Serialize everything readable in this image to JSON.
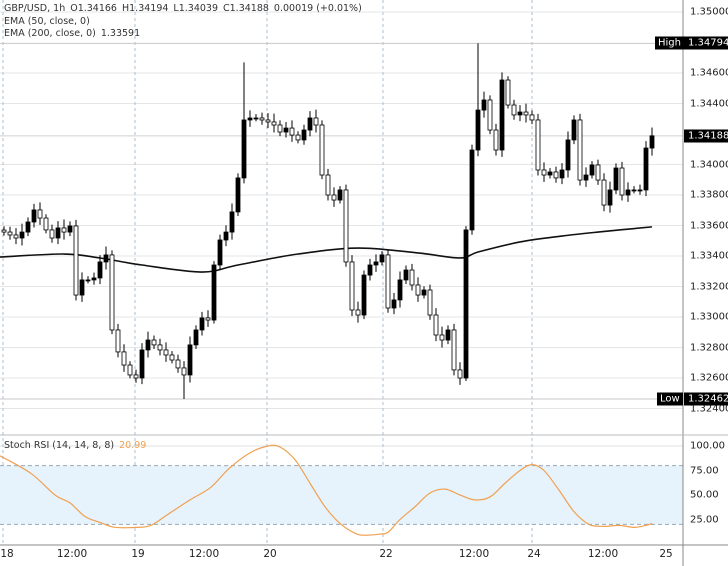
{
  "legend": {
    "symbol": "GBP/USD, 1h",
    "open": "O1.34166",
    "high": "H1.34194",
    "low": "L1.34039",
    "close": "C1.34188",
    "change": "0.00019 (+0.01%)",
    "ema50_label": "EMA (50, close, 0)",
    "ema200_label": "EMA (200, close, 0)",
    "ema200_value": "1.33591"
  },
  "stoch": {
    "label": "Stoch RSI (14, 14, 8, 8)",
    "value": "20.99",
    "color": "#f0a050",
    "band_color": "#e6f3fc"
  },
  "price_scale": {
    "ticks": [
      "1.35000",
      "1.34600",
      "1.34400",
      "1.34000",
      "1.33800",
      "1.33600",
      "1.33400",
      "1.33200",
      "1.33000",
      "1.32800",
      "1.32600",
      "1.32400"
    ],
    "high_tag": {
      "label": "High",
      "value": "1.34794"
    },
    "low_tag": {
      "label": "Low",
      "value": "1.32462"
    },
    "last_price": "1.34188"
  },
  "stoch_scale": {
    "ticks": [
      "100.00",
      "75.00",
      "50.00",
      "25.00"
    ]
  },
  "time_axis": {
    "labels": [
      "18",
      "12:00",
      "19",
      "12:00",
      "20",
      "22",
      "12:00",
      "24",
      "12:00",
      "25"
    ]
  },
  "chart_data": {
    "type": "candlestick",
    "symbol": "GBP/USD",
    "timeframe": "1h",
    "ylim": [
      1.3232,
      1.3508
    ],
    "up_color": "#000000",
    "down_color": "#ffffff",
    "period_high": 1.34794,
    "period_low": 1.32462,
    "close": [
      1.33557,
      1.33538,
      1.33518,
      1.33557,
      1.33623,
      1.33702,
      1.33649,
      1.33571,
      1.33518,
      1.33584,
      1.33557,
      1.33597,
      1.33144,
      1.33243,
      1.33243,
      1.33256,
      1.33361,
      1.33407,
      1.32915,
      1.32771,
      1.32685,
      1.3262,
      1.326,
      1.32784,
      1.32849,
      1.32817,
      1.32784,
      1.32751,
      1.32718,
      1.32666,
      1.3262,
      1.32817,
      1.32915,
      1.32994,
      1.3298,
      1.33341,
      1.33505,
      1.33557,
      1.33689,
      1.33912,
      1.34292,
      1.34305,
      1.34305,
      1.34292,
      1.34279,
      1.34259,
      1.34213,
      1.34239,
      1.34193,
      1.34161,
      1.34226,
      1.34305,
      1.34259,
      1.33931,
      1.338,
      1.33767,
      1.33833,
      1.33361,
      1.33046,
      1.33013,
      1.33275,
      1.33341,
      1.33361,
      1.33407,
      1.33059,
      1.33112,
      1.33243,
      1.33308,
      1.3321,
      1.33144,
      1.33177,
      1.33013,
      1.32882,
      1.32849,
      1.32915,
      1.32653,
      1.326,
      1.33571,
      1.34095,
      1.34357,
      1.34423,
      1.34226,
      1.34095,
      1.34554,
      1.3439,
      1.34325,
      1.34344,
      1.34325,
      1.34292,
      1.33964,
      1.33931,
      1.33951,
      1.33912,
      1.33964,
      1.34161,
      1.34292,
      1.33898,
      1.33931,
      1.33997,
      1.33898,
      1.33734,
      1.33833,
      1.33977,
      1.338,
      1.33833,
      1.33833,
      1.33833,
      1.34108,
      1.34188
    ],
    "ema200": [
      [
        0,
        1.33393
      ],
      [
        10,
        1.33413
      ],
      [
        16,
        1.33387
      ],
      [
        23,
        1.33341
      ],
      [
        33,
        1.33295
      ],
      [
        39,
        1.33341
      ],
      [
        49,
        1.33413
      ],
      [
        59,
        1.33452
      ],
      [
        69,
        1.3342
      ],
      [
        76,
        1.33387
      ],
      [
        79,
        1.33426
      ],
      [
        86,
        1.33492
      ],
      [
        93,
        1.33531
      ],
      [
        99,
        1.33557
      ],
      [
        108,
        1.33591
      ]
    ],
    "stoch_rsi": [
      [
        0,
        90
      ],
      [
        4.5,
        72
      ],
      [
        8.5,
        50
      ],
      [
        11,
        42
      ],
      [
        13.5,
        28
      ],
      [
        16,
        22
      ],
      [
        18.5,
        17
      ],
      [
        22,
        17
      ],
      [
        24.5,
        19
      ],
      [
        27.5,
        31
      ],
      [
        31,
        45
      ],
      [
        34.5,
        58
      ],
      [
        37.5,
        77
      ],
      [
        41,
        93
      ],
      [
        44,
        100
      ],
      [
        46,
        99
      ],
      [
        48.5,
        86
      ],
      [
        51,
        62
      ],
      [
        53.5,
        38
      ],
      [
        56,
        21
      ],
      [
        58.5,
        11
      ],
      [
        60,
        9
      ],
      [
        62.5,
        10
      ],
      [
        64,
        12
      ],
      [
        66,
        25
      ],
      [
        68.5,
        38
      ],
      [
        71,
        52
      ],
      [
        73.5,
        56
      ],
      [
        76,
        50
      ],
      [
        78.5,
        45
      ],
      [
        81,
        48
      ],
      [
        83.5,
        62
      ],
      [
        86,
        75
      ],
      [
        88,
        81
      ],
      [
        90,
        75
      ],
      [
        92.5,
        55
      ],
      [
        95,
        33
      ],
      [
        97.5,
        20
      ],
      [
        100,
        18
      ],
      [
        102.5,
        19
      ],
      [
        105,
        17
      ],
      [
        107,
        19
      ],
      [
        108,
        20.99
      ]
    ],
    "stoch_ylim": [
      0,
      100
    ],
    "stoch_bands": [
      20,
      80
    ]
  }
}
